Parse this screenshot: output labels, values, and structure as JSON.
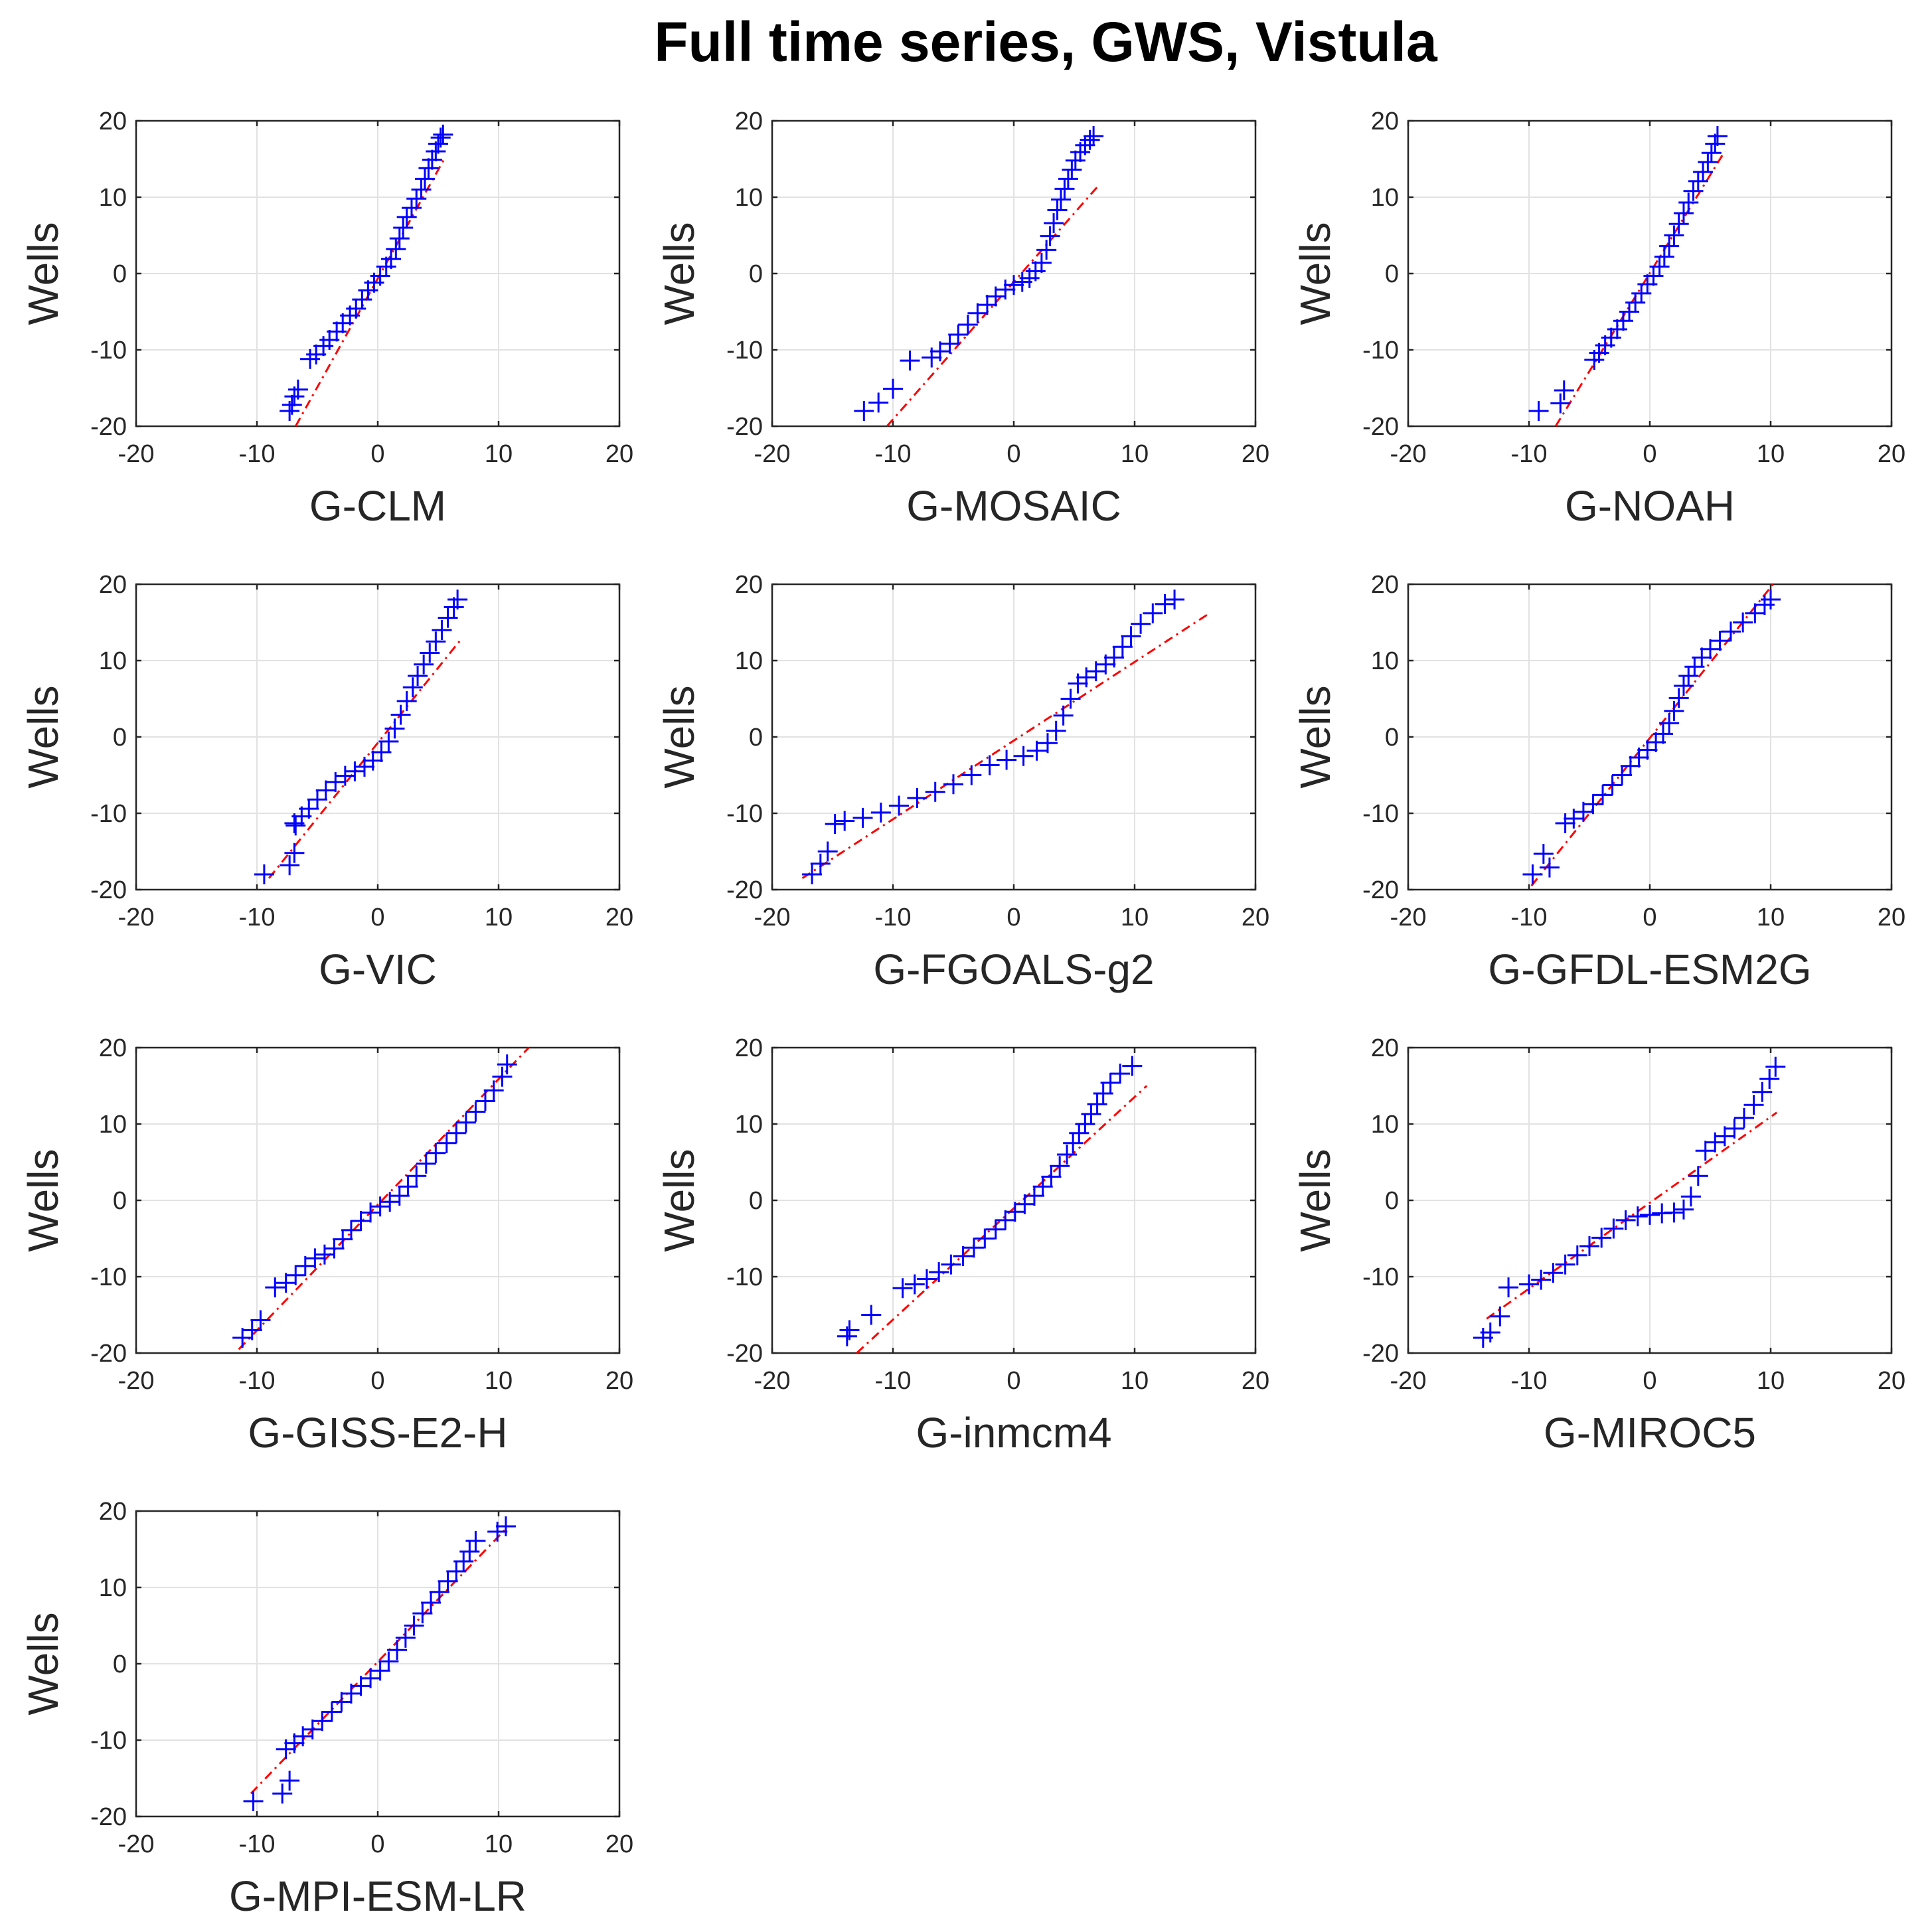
{
  "figure": {
    "title": "Full time series, GWS, Vistula"
  },
  "chart_data": [
    {
      "type": "scatter",
      "title": "",
      "xlabel": "G-CLM",
      "ylabel": "Wells",
      "xlim": [
        -20,
        20
      ],
      "ylim": [
        -20,
        20
      ],
      "xticks": [
        -20,
        -10,
        0,
        10,
        20
      ],
      "yticks": [
        -20,
        -10,
        0,
        10,
        20
      ],
      "grid": true,
      "marker": "+",
      "marker_color": "#0000ff",
      "reference_line_color": "#ff0000",
      "reference_line": {
        "x": [
          -6.8,
          5.5
        ],
        "y": [
          -20,
          15
        ]
      },
      "points": {
        "x": [
          -7.3,
          -7.1,
          -6.9,
          -6.6,
          -5.6,
          -5.1,
          -4.5,
          -4.0,
          -3.4,
          -2.9,
          -2.3,
          -1.8,
          -1.3,
          -0.8,
          -0.3,
          0.2,
          0.7,
          1.1,
          1.5,
          1.8,
          2.1,
          2.4,
          2.8,
          3.2,
          3.6,
          3.9,
          4.2,
          4.5,
          4.8,
          5.0,
          5.2,
          5.4
        ],
        "y": [
          -18,
          -17.2,
          -16.1,
          -15.2,
          -11.2,
          -10.6,
          -9.5,
          -8.7,
          -7.6,
          -6.5,
          -5.5,
          -4.6,
          -3.4,
          -2.2,
          -1.2,
          -0.3,
          0.9,
          1.9,
          3.2,
          4.6,
          6.0,
          7.4,
          8.6,
          9.8,
          11.0,
          12.4,
          13.8,
          14.9,
          16.0,
          17.0,
          17.8,
          18.2
        ]
      }
    },
    {
      "type": "scatter",
      "title": "",
      "xlabel": "G-MOSAIC",
      "ylabel": "Wells",
      "xlim": [
        -20,
        20
      ],
      "ylim": [
        -20,
        20
      ],
      "xticks": [
        -20,
        -10,
        0,
        10,
        20
      ],
      "yticks": [
        -20,
        -10,
        0,
        10,
        20
      ],
      "grid": true,
      "marker": "+",
      "marker_color": "#0000ff",
      "reference_line_color": "#ff0000",
      "reference_line": {
        "x": [
          -10.5,
          7.0
        ],
        "y": [
          -20,
          11.5
        ]
      },
      "points": {
        "x": [
          -12.4,
          -11.2,
          -10.0,
          -8.6,
          -6.8,
          -6.1,
          -5.3,
          -4.6,
          -3.8,
          -3.0,
          -2.2,
          -1.5,
          -0.7,
          0.0,
          0.7,
          1.3,
          1.8,
          2.3,
          2.7,
          3.0,
          3.3,
          3.6,
          3.9,
          4.2,
          4.5,
          4.8,
          5.1,
          5.5,
          5.9,
          6.3,
          6.6
        ],
        "y": [
          -18,
          -16.9,
          -15.1,
          -11.4,
          -11.0,
          -10.2,
          -9.2,
          -8.0,
          -6.7,
          -5.2,
          -4.1,
          -3.0,
          -2.1,
          -1.5,
          -1.1,
          -0.6,
          0.3,
          1.4,
          3.1,
          4.9,
          6.6,
          8.3,
          9.7,
          11.1,
          12.4,
          13.6,
          14.8,
          15.9,
          16.8,
          17.5,
          18.0
        ]
      }
    },
    {
      "type": "scatter",
      "title": "",
      "xlabel": "G-NOAH",
      "ylabel": "Wells",
      "xlim": [
        -20,
        20
      ],
      "ylim": [
        -20,
        20
      ],
      "xticks": [
        -20,
        -10,
        0,
        10,
        20
      ],
      "yticks": [
        -20,
        -10,
        0,
        10,
        20
      ],
      "grid": true,
      "marker": "+",
      "marker_color": "#0000ff",
      "reference_line_color": "#ff0000",
      "reference_line": {
        "x": [
          -7.8,
          6.2
        ],
        "y": [
          -20,
          16
        ]
      },
      "points": {
        "x": [
          -9.2,
          -7.4,
          -7.1,
          -4.6,
          -4.2,
          -3.7,
          -3.2,
          -2.7,
          -2.2,
          -1.7,
          -1.2,
          -0.7,
          -0.2,
          0.3,
          0.8,
          1.2,
          1.6,
          2.0,
          2.4,
          2.8,
          3.2,
          3.6,
          4.0,
          4.4,
          4.8,
          5.1,
          5.4,
          5.6
        ],
        "y": [
          -18,
          -17.0,
          -15.3,
          -11.3,
          -10.4,
          -9.4,
          -8.4,
          -7.3,
          -6.2,
          -5.0,
          -3.8,
          -2.6,
          -1.4,
          -0.3,
          0.9,
          2.2,
          3.6,
          5.0,
          6.5,
          7.9,
          9.3,
          10.8,
          12.1,
          13.3,
          14.6,
          15.8,
          17.0,
          18.0
        ]
      }
    },
    {
      "type": "scatter",
      "title": "",
      "xlabel": "G-VIC",
      "ylabel": "Wells",
      "xlim": [
        -20,
        20
      ],
      "ylim": [
        -20,
        20
      ],
      "xticks": [
        -20,
        -10,
        0,
        10,
        20
      ],
      "yticks": [
        -20,
        -10,
        0,
        10,
        20
      ],
      "grid": true,
      "marker": "+",
      "marker_color": "#0000ff",
      "reference_line_color": "#ff0000",
      "reference_line": {
        "x": [
          -9.0,
          7.0
        ],
        "y": [
          -18.5,
          13
        ]
      },
      "points": {
        "x": [
          -9.4,
          -7.3,
          -6.9,
          -6.8,
          -6.9,
          -6.3,
          -5.7,
          -5.0,
          -4.3,
          -3.5,
          -2.7,
          -1.9,
          -1.1,
          -0.4,
          0.3,
          0.9,
          1.4,
          1.9,
          2.4,
          2.9,
          3.3,
          3.8,
          4.3,
          4.8,
          5.3,
          5.8,
          6.3,
          6.6
        ],
        "y": [
          -18,
          -16.8,
          -15.2,
          -11.6,
          -11.3,
          -10.4,
          -9.4,
          -8.2,
          -7.0,
          -5.9,
          -5.1,
          -4.5,
          -3.9,
          -3.1,
          -2.0,
          -0.6,
          1.1,
          2.9,
          4.7,
          6.5,
          8.0,
          9.5,
          11.0,
          12.5,
          14.0,
          15.6,
          17.0,
          18.0
        ]
      }
    },
    {
      "type": "scatter",
      "title": "",
      "xlabel": "G-FGOALS-g2",
      "ylabel": "Wells",
      "xlim": [
        -20,
        20
      ],
      "ylim": [
        -20,
        20
      ],
      "xticks": [
        -20,
        -10,
        0,
        10,
        20
      ],
      "yticks": [
        -20,
        -10,
        0,
        10,
        20
      ],
      "grid": true,
      "marker": "+",
      "marker_color": "#0000ff",
      "reference_line_color": "#ff0000",
      "reference_line": {
        "x": [
          -17.5,
          16.0
        ],
        "y": [
          -18.5,
          16
        ]
      },
      "points": {
        "x": [
          -16.7,
          -16.0,
          -15.4,
          -14.8,
          -14.0,
          -12.5,
          -11.0,
          -9.5,
          -8.0,
          -6.5,
          -5.0,
          -3.5,
          -2.0,
          -0.6,
          0.8,
          1.9,
          2.8,
          3.5,
          4.1,
          4.7,
          5.3,
          6.0,
          6.8,
          7.6,
          8.3,
          9.0,
          9.7,
          10.5,
          11.5,
          12.5,
          13.3
        ],
        "y": [
          -18.0,
          -16.6,
          -15.0,
          -11.4,
          -11.0,
          -10.6,
          -9.9,
          -9.0,
          -8.0,
          -7.2,
          -6.2,
          -5.0,
          -3.7,
          -3.0,
          -2.5,
          -1.8,
          -0.8,
          0.8,
          2.8,
          5.0,
          7.0,
          7.8,
          8.6,
          9.5,
          10.4,
          11.8,
          13.2,
          14.8,
          16.2,
          17.4,
          18.0
        ]
      }
    },
    {
      "type": "scatter",
      "title": "",
      "xlabel": "G-GFDL-ESM2G",
      "ylabel": "Wells",
      "xlim": [
        -20,
        20
      ],
      "ylim": [
        -20,
        20
      ],
      "xticks": [
        -20,
        -10,
        0,
        10,
        20
      ],
      "yticks": [
        -20,
        -10,
        0,
        10,
        20
      ],
      "grid": true,
      "marker": "+",
      "marker_color": "#0000ff",
      "reference_line_color": "#ff0000",
      "reference_line": {
        "x": [
          -9.8,
          10.2
        ],
        "y": [
          -19.5,
          20
        ]
      },
      "points": {
        "x": [
          -9.7,
          -8.3,
          -8.8,
          -7.0,
          -6.3,
          -5.5,
          -4.7,
          -3.9,
          -3.1,
          -2.3,
          -1.6,
          -0.9,
          -0.2,
          0.5,
          1.1,
          1.6,
          2.0,
          2.4,
          2.8,
          3.2,
          3.7,
          4.3,
          5.0,
          5.8,
          6.7,
          7.7,
          8.7,
          9.5,
          10.0
        ],
        "y": [
          -18.0,
          -17.1,
          -15.3,
          -11.3,
          -10.7,
          -9.8,
          -8.8,
          -7.6,
          -6.3,
          -5.0,
          -3.8,
          -2.7,
          -1.7,
          -0.7,
          0.4,
          1.8,
          3.4,
          5.1,
          6.7,
          8.0,
          9.2,
          10.4,
          11.5,
          12.6,
          13.8,
          15.0,
          16.2,
          17.3,
          18.0
        ]
      }
    },
    {
      "type": "scatter",
      "title": "",
      "xlabel": "G-GISS-E2-H",
      "ylabel": "Wells",
      "xlim": [
        -20,
        20
      ],
      "ylim": [
        -20,
        20
      ],
      "xticks": [
        -20,
        -10,
        0,
        10,
        20
      ],
      "yticks": [
        -20,
        -10,
        0,
        10,
        20
      ],
      "grid": true,
      "marker": "+",
      "marker_color": "#0000ff",
      "reference_line_color": "#ff0000",
      "reference_line": {
        "x": [
          -11.5,
          12.5
        ],
        "y": [
          -19.5,
          20
        ]
      },
      "points": {
        "x": [
          -11.2,
          -10.4,
          -9.7,
          -8.5,
          -7.6,
          -6.8,
          -6.0,
          -5.2,
          -4.4,
          -3.6,
          -2.9,
          -2.2,
          -1.4,
          -0.6,
          0.2,
          1.0,
          1.8,
          2.5,
          3.2,
          4.0,
          4.8,
          5.7,
          6.5,
          7.3,
          8.1,
          8.9,
          9.6,
          10.3,
          10.7
        ],
        "y": [
          -18.0,
          -17.0,
          -15.7,
          -11.4,
          -10.8,
          -9.8,
          -8.6,
          -7.6,
          -7.1,
          -6.3,
          -5.1,
          -3.9,
          -2.7,
          -1.6,
          -0.8,
          -0.2,
          0.6,
          1.8,
          3.2,
          4.8,
          6.2,
          7.5,
          8.8,
          10.2,
          11.6,
          13.0,
          14.4,
          16.2,
          17.8
        ]
      }
    },
    {
      "type": "scatter",
      "title": "",
      "xlabel": "G-inmcm4",
      "ylabel": "Wells",
      "xlim": [
        -20,
        20
      ],
      "ylim": [
        -20,
        20
      ],
      "xticks": [
        -20,
        -10,
        0,
        10,
        20
      ],
      "yticks": [
        -20,
        -10,
        0,
        10,
        20
      ],
      "grid": true,
      "marker": "+",
      "marker_color": "#0000ff",
      "reference_line_color": "#ff0000",
      "reference_line": {
        "x": [
          -13.0,
          11.0
        ],
        "y": [
          -20,
          15
        ]
      },
      "points": {
        "x": [
          -13.8,
          -13.6,
          -11.8,
          -9.2,
          -8.2,
          -7.2,
          -6.2,
          -5.2,
          -4.2,
          -3.3,
          -2.4,
          -1.5,
          -0.7,
          0.1,
          0.9,
          1.7,
          2.4,
          3.1,
          3.8,
          4.4,
          4.9,
          5.4,
          5.9,
          6.4,
          6.9,
          7.4,
          8.0,
          8.8,
          9.8
        ],
        "y": [
          -17.8,
          -17.0,
          -15.0,
          -11.5,
          -11.0,
          -10.3,
          -9.4,
          -8.4,
          -7.3,
          -6.2,
          -5.0,
          -3.8,
          -2.6,
          -1.5,
          -0.5,
          0.6,
          1.8,
          3.1,
          4.5,
          6.0,
          7.5,
          8.8,
          10.0,
          11.3,
          12.6,
          14.0,
          15.4,
          16.6,
          17.6
        ]
      }
    },
    {
      "type": "scatter",
      "title": "",
      "xlabel": "G-MIROC5",
      "ylabel": "Wells",
      "xlim": [
        -20,
        20
      ],
      "ylim": [
        -20,
        20
      ],
      "xticks": [
        -20,
        -10,
        0,
        10,
        20
      ],
      "yticks": [
        -20,
        -10,
        0,
        10,
        20
      ],
      "grid": true,
      "marker": "+",
      "marker_color": "#0000ff",
      "reference_line_color": "#ff0000",
      "reference_line": {
        "x": [
          -13.5,
          10.5
        ],
        "y": [
          -15.5,
          11.5
        ]
      },
      "points": {
        "x": [
          -13.8,
          -13.2,
          -12.4,
          -11.7,
          -10.0,
          -9.0,
          -8.0,
          -7.0,
          -6.0,
          -5.0,
          -4.0,
          -3.0,
          -2.0,
          -1.0,
          0.0,
          1.0,
          2.0,
          2.8,
          3.4,
          4.0,
          4.6,
          5.4,
          6.2,
          7.0,
          7.8,
          8.6,
          9.3,
          9.9,
          10.4
        ],
        "y": [
          -18.0,
          -17.3,
          -15.2,
          -11.4,
          -11.0,
          -10.4,
          -9.5,
          -8.4,
          -7.2,
          -6.0,
          -4.9,
          -3.7,
          -2.6,
          -2.1,
          -1.9,
          -1.7,
          -1.6,
          -1.2,
          0.5,
          3.2,
          6.5,
          7.6,
          8.4,
          9.4,
          10.8,
          12.5,
          14.2,
          15.9,
          17.5
        ]
      }
    },
    {
      "type": "scatter",
      "title": "",
      "xlabel": "G-MPI-ESM-LR",
      "ylabel": "Wells",
      "xlim": [
        -20,
        20
      ],
      "ylim": [
        -20,
        20
      ],
      "xticks": [
        -20,
        -10,
        0,
        10,
        20
      ],
      "yticks": [
        -20,
        -10,
        0,
        10,
        20
      ],
      "grid": true,
      "marker": "+",
      "marker_color": "#0000ff",
      "reference_line_color": "#ff0000",
      "reference_line": {
        "x": [
          -10.5,
          10.5
        ],
        "y": [
          -17,
          17.5
        ]
      },
      "points": {
        "x": [
          -10.3,
          -7.9,
          -7.3,
          -7.6,
          -6.9,
          -6.2,
          -5.4,
          -4.6,
          -3.8,
          -3.0,
          -2.2,
          -1.4,
          -0.6,
          0.2,
          0.9,
          1.6,
          2.3,
          3.0,
          3.7,
          4.4,
          5.1,
          5.8,
          6.5,
          7.1,
          7.6,
          8.1,
          9.9,
          10.6
        ],
        "y": [
          -18.0,
          -17.0,
          -15.3,
          -11.2,
          -10.4,
          -9.5,
          -8.6,
          -7.5,
          -6.3,
          -5.0,
          -3.9,
          -2.9,
          -1.9,
          -0.9,
          0.3,
          1.8,
          3.4,
          5.0,
          6.6,
          8.0,
          9.4,
          10.8,
          12.1,
          13.4,
          14.7,
          16.1,
          17.3,
          18.0
        ]
      }
    }
  ]
}
